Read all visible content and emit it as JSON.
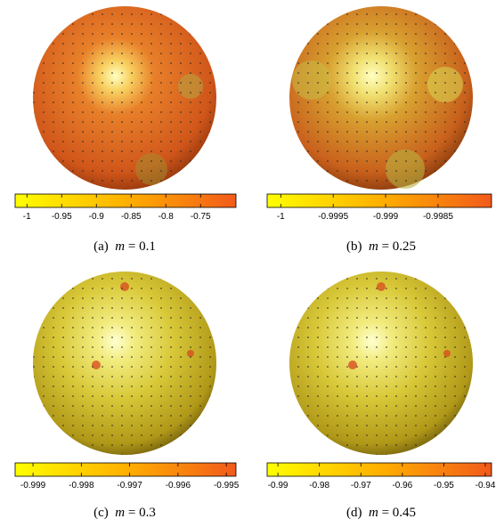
{
  "panels": [
    {
      "colorbar": {
        "lim": [
          -1.017,
          -0.699
        ],
        "ticks": [
          -1,
          -0.95,
          -0.9,
          -0.85,
          -0.8,
          -0.75
        ]
      },
      "caption": {
        "tag": "(a)",
        "variable": "m",
        "value": "= 0.1"
      }
    },
    {
      "colorbar": {
        "lim": [
          -1.00013,
          -0.99799
        ],
        "ticks": [
          -1,
          -0.9995,
          -0.999,
          -0.9985
        ]
      },
      "caption": {
        "tag": "(b)",
        "variable": "m",
        "value": "= 0.25"
      }
    },
    {
      "colorbar": {
        "lim": [
          -0.99937,
          -0.9948
        ],
        "ticks": [
          -0.999,
          -0.998,
          -0.997,
          -0.996,
          -0.995
        ]
      },
      "caption": {
        "tag": "(c)",
        "variable": "m",
        "value": "= 0.3"
      }
    },
    {
      "colorbar": {
        "lim": [
          -0.9926,
          -0.9385
        ],
        "ticks": [
          -0.99,
          -0.98,
          -0.97,
          -0.96,
          -0.95,
          -0.94
        ]
      },
      "caption": {
        "tag": "(d)",
        "variable": "m",
        "value": "= 0.45"
      }
    }
  ]
}
